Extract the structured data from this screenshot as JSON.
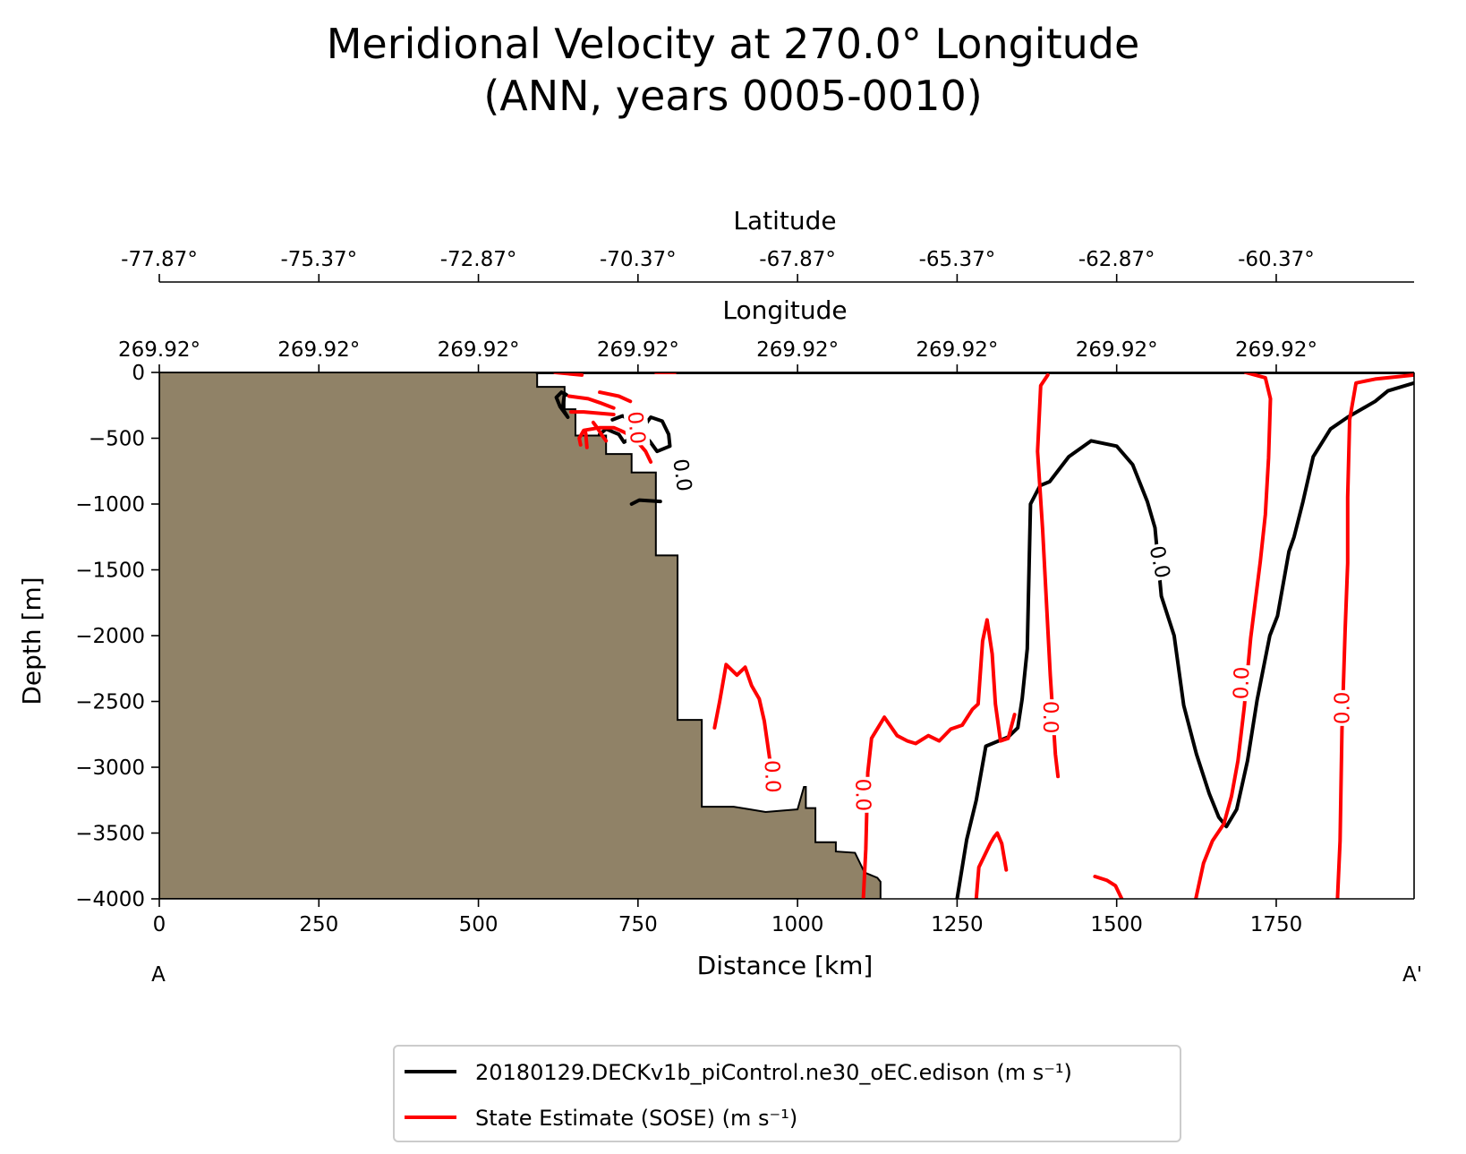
{
  "chart_data": {
    "type": "line",
    "title_line1": "Meridional Velocity at 270.0° Longitude",
    "title_line2": "(ANN, years 0005-0010)",
    "xlabel": "Distance [km]",
    "ylabel": "Depth [m]",
    "xlim": [
      0,
      1966
    ],
    "ylim": [
      -4000,
      0
    ],
    "x_ticks": [
      0,
      250,
      500,
      750,
      1000,
      1250,
      1500,
      1750
    ],
    "x_tick_labels": [
      "0",
      "250",
      "500",
      "750",
      "1000",
      "1250",
      "1500",
      "1750"
    ],
    "y_ticks": [
      0,
      -500,
      -1000,
      -1500,
      -2000,
      -2500,
      -3000,
      -3500,
      -4000
    ],
    "y_tick_labels": [
      "0",
      "−500",
      "−1000",
      "−1500",
      "−2000",
      "−2500",
      "−3000",
      "−3500",
      "−4000"
    ],
    "section_start_label": "A",
    "section_end_label": "A'",
    "top_axes": [
      {
        "label": "Longitude",
        "tick_labels": [
          "269.92°",
          "269.92°",
          "269.92°",
          "269.92°",
          "269.92°",
          "269.92°",
          "269.92°",
          "269.92°"
        ]
      },
      {
        "label": "Latitude",
        "tick_labels": [
          "-77.87°",
          "-75.37°",
          "-72.87°",
          "-70.37°",
          "-67.87°",
          "-65.37°",
          "-62.87°",
          "-60.37°"
        ]
      }
    ],
    "contour_level_label": "0.0",
    "bathymetry": {
      "fill_color": "#908267",
      "points": [
        [
          0,
          0
        ],
        [
          592,
          0
        ],
        [
          592,
          -110
        ],
        [
          635,
          -110
        ],
        [
          635,
          -280
        ],
        [
          652,
          -280
        ],
        [
          652,
          -480
        ],
        [
          700,
          -480
        ],
        [
          700,
          -620
        ],
        [
          740,
          -620
        ],
        [
          740,
          -760
        ],
        [
          778,
          -760
        ],
        [
          778,
          -1390
        ],
        [
          812,
          -1390
        ],
        [
          812,
          -2640
        ],
        [
          850,
          -2640
        ],
        [
          850,
          -3300
        ],
        [
          900,
          -3300
        ],
        [
          925,
          -3320
        ],
        [
          950,
          -3340
        ],
        [
          975,
          -3330
        ],
        [
          1000,
          -3320
        ],
        [
          1010,
          -3150
        ],
        [
          1013,
          -3150
        ],
        [
          1013,
          -3310
        ],
        [
          1028,
          -3310
        ],
        [
          1028,
          -3570
        ],
        [
          1060,
          -3570
        ],
        [
          1060,
          -3640
        ],
        [
          1090,
          -3650
        ],
        [
          1105,
          -3800
        ],
        [
          1125,
          -3840
        ],
        [
          1130,
          -3870
        ],
        [
          1130,
          -4000
        ],
        [
          0,
          -4000
        ]
      ]
    },
    "series": [
      {
        "name": "20180129.DECKv1b_piControl.ne30_oEC.edison (m s⁻¹)",
        "color": "#000000",
        "segments": [
          [
            [
              635,
              -160
            ],
            [
              632,
              -270
            ],
            [
              635,
              -300
            ],
            [
              640,
              -340
            ],
            [
              628,
              -260
            ],
            [
              622,
              -190
            ],
            [
              630,
              -150
            ],
            [
              638,
              -170
            ]
          ],
          [
            [
              710,
              -360
            ],
            [
              726,
              -330
            ],
            [
              742,
              -375
            ],
            [
              752,
              -390
            ],
            [
              758,
              -420
            ],
            [
              770,
              -340
            ],
            [
              788,
              -370
            ],
            [
              798,
              -470
            ],
            [
              800,
              -560
            ],
            [
              780,
              -600
            ],
            [
              768,
              -520
            ],
            [
              760,
              -500
            ],
            [
              745,
              -480
            ],
            [
              728,
              -530
            ],
            [
              720,
              -470
            ],
            [
              700,
              -430
            ],
            [
              690,
              -470
            ]
          ],
          [
            [
              740,
              -1000
            ],
            [
              752,
              -970
            ],
            [
              785,
              -980
            ]
          ],
          [
            [
              1250,
              -4000
            ],
            [
              1265,
              -3550
            ],
            [
              1280,
              -3250
            ],
            [
              1295,
              -2840
            ],
            [
              1330,
              -2770
            ],
            [
              1345,
              -2700
            ],
            [
              1352,
              -2480
            ],
            [
              1360,
              -2100
            ],
            [
              1365,
              -1000
            ],
            [
              1380,
              -860
            ],
            [
              1395,
              -830
            ],
            [
              1425,
              -640
            ],
            [
              1460,
              -520
            ],
            [
              1500,
              -560
            ],
            [
              1525,
              -700
            ],
            [
              1548,
              -980
            ],
            [
              1560,
              -1180
            ],
            [
              1570,
              -1700
            ],
            [
              1590,
              -2000
            ],
            [
              1605,
              -2530
            ],
            [
              1625,
              -2900
            ],
            [
              1645,
              -3200
            ],
            [
              1660,
              -3380
            ],
            [
              1672,
              -3450
            ],
            [
              1688,
              -3320
            ],
            [
              1705,
              -2950
            ],
            [
              1720,
              -2490
            ],
            [
              1740,
              -2000
            ],
            [
              1752,
              -1850
            ],
            [
              1770,
              -1360
            ],
            [
              1778,
              -1250
            ],
            [
              1792,
              -980
            ],
            [
              1808,
              -640
            ],
            [
              1835,
              -430
            ],
            [
              1862,
              -340
            ],
            [
              1905,
              -220
            ],
            [
              1925,
              -140
            ],
            [
              1966,
              -80
            ]
          ],
          [
            [
              592,
              0
            ],
            [
              1966,
              0
            ]
          ]
        ]
      },
      {
        "name": "State Estimate (SOSE) (m s⁻¹)",
        "color": "#ff0000",
        "segments": [
          [
            [
              620,
              0
            ],
            [
              662,
              -20
            ]
          ],
          [
            [
              778,
              0
            ],
            [
              808,
              0
            ]
          ],
          [
            [
              712,
              -320
            ],
            [
              665,
              -300
            ],
            [
              645,
              -300
            ]
          ],
          [
            [
              680,
              -380
            ],
            [
              686,
              -420
            ],
            [
              694,
              -480
            ],
            [
              700,
              -520
            ]
          ],
          [
            [
              660,
              -550
            ],
            [
              658,
              -500
            ],
            [
              665,
              -440
            ],
            [
              690,
              -420
            ],
            [
              712,
              -420
            ],
            [
              722,
              -440
            ],
            [
              735,
              -470
            ],
            [
              748,
              -520
            ],
            [
              762,
              -600
            ],
            [
              770,
              -680
            ]
          ],
          [
            [
              642,
              -180
            ],
            [
              672,
              -200
            ],
            [
              690,
              -230
            ],
            [
              712,
              -270
            ]
          ],
          [
            [
              668,
              -460
            ],
            [
              670,
              -570
            ]
          ],
          [
            [
              690,
              -150
            ],
            [
              720,
              -180
            ],
            [
              738,
              -220
            ]
          ],
          [
            [
              870,
              -2700
            ],
            [
              878,
              -2500
            ],
            [
              888,
              -2220
            ],
            [
              905,
              -2300
            ],
            [
              918,
              -2240
            ],
            [
              928,
              -2380
            ],
            [
              940,
              -2480
            ],
            [
              948,
              -2650
            ],
            [
              957,
              -2960
            ]
          ],
          [
            [
              1103,
              -4000
            ],
            [
              1107,
              -3620
            ],
            [
              1110,
              -3040
            ],
            [
              1116,
              -2780
            ],
            [
              1136,
              -2620
            ],
            [
              1156,
              -2760
            ],
            [
              1172,
              -2800
            ],
            [
              1185,
              -2820
            ],
            [
              1205,
              -2760
            ],
            [
              1222,
              -2800
            ],
            [
              1240,
              -2710
            ],
            [
              1258,
              -2680
            ],
            [
              1274,
              -2560
            ],
            [
              1283,
              -2520
            ],
            [
              1290,
              -2040
            ],
            [
              1297,
              -1880
            ],
            [
              1305,
              -2140
            ],
            [
              1310,
              -2520
            ],
            [
              1318,
              -2800
            ],
            [
              1330,
              -2780
            ],
            [
              1340,
              -2600
            ]
          ],
          [
            [
              1280,
              -4000
            ],
            [
              1284,
              -3760
            ],
            [
              1302,
              -3580
            ],
            [
              1308,
              -3530
            ],
            [
              1313,
              -3500
            ],
            [
              1320,
              -3580
            ],
            [
              1327,
              -3780
            ]
          ],
          [
            [
              1408,
              -3070
            ],
            [
              1404,
              -2900
            ],
            [
              1396,
              -2300
            ],
            [
              1384,
              -1200
            ],
            [
              1376,
              -600
            ],
            [
              1381,
              -100
            ],
            [
              1392,
              -20
            ]
          ],
          [
            [
              1466,
              -3830
            ],
            [
              1485,
              -3860
            ],
            [
              1498,
              -3900
            ],
            [
              1508,
              -4000
            ]
          ],
          [
            [
              1624,
              -4000
            ],
            [
              1636,
              -3730
            ],
            [
              1650,
              -3560
            ],
            [
              1668,
              -3430
            ],
            [
              1680,
              -3220
            ],
            [
              1690,
              -2950
            ],
            [
              1700,
              -2540
            ],
            [
              1710,
              -2020
            ],
            [
              1725,
              -1440
            ],
            [
              1733,
              -1080
            ],
            [
              1738,
              -650
            ],
            [
              1741,
              -200
            ],
            [
              1733,
              -40
            ],
            [
              1702,
              0
            ]
          ],
          [
            [
              1846,
              -4000
            ],
            [
              1850,
              -3560
            ],
            [
              1853,
              -2720
            ],
            [
              1858,
              -1950
            ],
            [
              1862,
              -1450
            ],
            [
              1862,
              -950
            ],
            [
              1865,
              -360
            ],
            [
              1875,
              -80
            ],
            [
              1905,
              -50
            ],
            [
              1966,
              -20
            ]
          ]
        ]
      }
    ],
    "contour_labels": [
      {
        "series": 0,
        "x": 820,
        "y": -780,
        "angle": 82
      },
      {
        "series": 0,
        "x": 1568,
        "y": -1440,
        "angle": 78
      },
      {
        "series": 1,
        "x": 748,
        "y": -420,
        "angle": 84
      },
      {
        "series": 1,
        "x": 961,
        "y": -3070,
        "angle": 88
      },
      {
        "series": 1,
        "x": 1103,
        "y": -3210,
        "angle": 89
      },
      {
        "series": 1,
        "x": 1397,
        "y": -2620,
        "angle": 90
      },
      {
        "series": 1,
        "x": 1695,
        "y": -2360,
        "angle": -88
      },
      {
        "series": 1,
        "x": 1853,
        "y": -2550,
        "angle": -90
      }
    ]
  },
  "legend": {
    "entries": [
      {
        "label": "20180129.DECKv1b_piControl.ne30_oEC.edison (m s⁻¹)",
        "color": "#000000"
      },
      {
        "label": "State Estimate (SOSE) (m s⁻¹)",
        "color": "#ff0000"
      }
    ]
  }
}
